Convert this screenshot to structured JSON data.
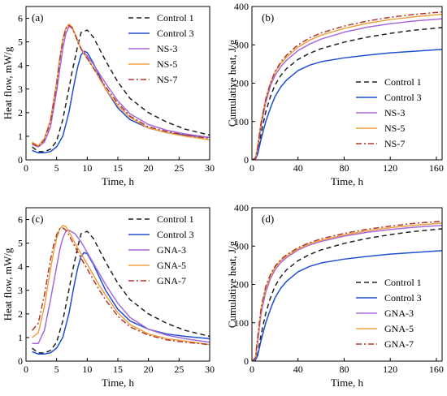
{
  "chart_data": [
    {
      "type": "line",
      "panel": "(a)",
      "xlabel": "Time, h",
      "ylabel": "Heat flow, mW/g",
      "xlim": [
        0,
        30
      ],
      "ylim": [
        0,
        6.5
      ],
      "xticks": [
        0,
        5,
        10,
        15,
        20,
        25,
        30
      ],
      "yticks": [
        0,
        1,
        2,
        3,
        4,
        5,
        6
      ],
      "legend_position": "top-right",
      "series": [
        {
          "name": "Control 1",
          "color": "#222222",
          "dash": "dashed",
          "x": [
            1,
            2,
            3,
            4,
            5,
            6,
            7,
            7.5,
            8,
            8.5,
            9,
            10,
            11,
            12,
            13,
            15,
            17,
            20,
            23,
            26,
            30
          ],
          "y": [
            0.55,
            0.35,
            0.35,
            0.45,
            0.8,
            1.7,
            3.0,
            3.7,
            4.3,
            4.9,
            5.4,
            5.5,
            5.2,
            4.7,
            4.2,
            3.3,
            2.6,
            2.0,
            1.6,
            1.3,
            1.05
          ]
        },
        {
          "name": "Control 3",
          "color": "#1f4fd0",
          "dash": "solid",
          "x": [
            1,
            2,
            3,
            4,
            5,
            6,
            7,
            8,
            8.5,
            9,
            9.5,
            10,
            11,
            12,
            13,
            15,
            17,
            20,
            23,
            26,
            30
          ],
          "y": [
            0.4,
            0.3,
            0.3,
            0.35,
            0.55,
            1.0,
            2.0,
            3.4,
            4.0,
            4.45,
            4.6,
            4.55,
            4.1,
            3.55,
            3.0,
            2.2,
            1.7,
            1.35,
            1.15,
            1.05,
            0.95
          ]
        },
        {
          "name": "NS-3",
          "color": "#a66ad8",
          "dash": "solid",
          "x": [
            1,
            2,
            3,
            4,
            5,
            5.5,
            6,
            6.5,
            7,
            7.5,
            8,
            8.5,
            9,
            10,
            11,
            12,
            13,
            15,
            17,
            20,
            23,
            26,
            30
          ],
          "y": [
            0.65,
            0.55,
            0.75,
            1.4,
            2.9,
            3.8,
            4.7,
            5.35,
            5.65,
            5.6,
            5.35,
            5.0,
            4.7,
            4.4,
            4.05,
            3.65,
            3.25,
            2.5,
            1.95,
            1.5,
            1.25,
            1.1,
            0.95
          ]
        },
        {
          "name": "NS-5",
          "color": "#f0a040",
          "dash": "solid",
          "x": [
            1,
            2,
            3,
            4,
            5,
            5.5,
            6,
            6.5,
            7,
            7.5,
            8,
            9,
            10,
            11,
            12,
            13,
            15,
            17,
            20,
            23,
            26,
            30
          ],
          "y": [
            0.75,
            0.6,
            0.9,
            1.7,
            3.3,
            4.3,
            5.1,
            5.6,
            5.75,
            5.65,
            5.35,
            4.7,
            4.3,
            3.9,
            3.45,
            3.0,
            2.3,
            1.8,
            1.35,
            1.15,
            1.0,
            0.85
          ]
        },
        {
          "name": "NS-7",
          "color": "#b0392e",
          "dash": "dashdot",
          "x": [
            1,
            2,
            3,
            4,
            5,
            5.5,
            6,
            6.5,
            7,
            7.5,
            8,
            9,
            10,
            11,
            12,
            13,
            15,
            17,
            20,
            23,
            26,
            30
          ],
          "y": [
            0.7,
            0.55,
            0.85,
            1.6,
            3.2,
            4.2,
            5.05,
            5.55,
            5.7,
            5.6,
            5.3,
            4.7,
            4.3,
            3.9,
            3.5,
            3.1,
            2.4,
            1.85,
            1.4,
            1.2,
            1.05,
            0.9
          ]
        }
      ]
    },
    {
      "type": "line",
      "panel": "(b)",
      "xlabel": "Time, h",
      "ylabel": "Cumulative heat, J/g",
      "xlim": [
        0,
        165
      ],
      "ylim": [
        0,
        400
      ],
      "xticks": [
        0,
        40,
        80,
        120,
        160
      ],
      "yticks": [
        0,
        100,
        200,
        300,
        400
      ],
      "legend_position": "bottom-right",
      "series": [
        {
          "name": "Control 1",
          "color": "#222222",
          "dash": "dashed",
          "x": [
            0,
            3,
            5,
            8,
            12,
            16,
            20,
            25,
            30,
            40,
            50,
            60,
            80,
            100,
            120,
            140,
            165
          ],
          "y": [
            0,
            2,
            20,
            70,
            125,
            165,
            195,
            220,
            238,
            262,
            278,
            290,
            307,
            320,
            330,
            338,
            345
          ]
        },
        {
          "name": "Control 3",
          "color": "#1f4fd0",
          "dash": "solid",
          "x": [
            0,
            3,
            5,
            8,
            12,
            16,
            20,
            25,
            30,
            40,
            50,
            60,
            80,
            100,
            120,
            140,
            165
          ],
          "y": [
            0,
            2,
            15,
            55,
            100,
            135,
            165,
            190,
            208,
            233,
            247,
            256,
            266,
            273,
            279,
            283,
            288
          ]
        },
        {
          "name": "NS-3",
          "color": "#a66ad8",
          "dash": "solid",
          "x": [
            0,
            3,
            5,
            8,
            12,
            16,
            20,
            25,
            30,
            40,
            50,
            60,
            80,
            100,
            120,
            140,
            165
          ],
          "y": [
            0,
            3,
            30,
            90,
            150,
            193,
            220,
            243,
            260,
            285,
            302,
            315,
            333,
            346,
            355,
            362,
            368
          ]
        },
        {
          "name": "NS-5",
          "color": "#f0a040",
          "dash": "solid",
          "x": [
            0,
            3,
            5,
            8,
            12,
            16,
            20,
            25,
            30,
            40,
            50,
            60,
            80,
            100,
            120,
            140,
            165
          ],
          "y": [
            0,
            4,
            35,
            100,
            160,
            200,
            228,
            251,
            268,
            294,
            312,
            325,
            343,
            356,
            366,
            373,
            380
          ]
        },
        {
          "name": "NS-7",
          "color": "#b0392e",
          "dash": "dashdot",
          "x": [
            0,
            3,
            5,
            8,
            12,
            16,
            20,
            25,
            30,
            40,
            50,
            60,
            80,
            100,
            120,
            140,
            165
          ],
          "y": [
            0,
            4,
            34,
            98,
            158,
            200,
            230,
            255,
            273,
            300,
            318,
            331,
            349,
            362,
            372,
            379,
            386
          ]
        }
      ]
    },
    {
      "type": "line",
      "panel": "(c)",
      "xlabel": "Time, h",
      "ylabel": "Heat flow, mW/g",
      "xlim": [
        0,
        30
      ],
      "ylim": [
        0,
        6.5
      ],
      "xticks": [
        0,
        5,
        10,
        15,
        20,
        25,
        30
      ],
      "yticks": [
        0,
        1,
        2,
        3,
        4,
        5,
        6
      ],
      "legend_position": "top-right",
      "series": [
        {
          "name": "Control 1",
          "color": "#222222",
          "dash": "dashed",
          "x": [
            1,
            2,
            3,
            4,
            5,
            6,
            7,
            7.5,
            8,
            8.5,
            9,
            10,
            11,
            12,
            13,
            15,
            17,
            20,
            23,
            26,
            30
          ],
          "y": [
            0.55,
            0.35,
            0.35,
            0.45,
            0.8,
            1.7,
            3.0,
            3.7,
            4.3,
            4.9,
            5.4,
            5.5,
            5.2,
            4.7,
            4.2,
            3.3,
            2.6,
            2.0,
            1.6,
            1.3,
            1.05
          ]
        },
        {
          "name": "Control 3",
          "color": "#1f4fd0",
          "dash": "solid",
          "x": [
            1,
            2,
            3,
            4,
            5,
            6,
            7,
            8,
            8.5,
            9,
            9.5,
            10,
            11,
            12,
            13,
            15,
            17,
            20,
            23,
            26,
            30
          ],
          "y": [
            0.4,
            0.3,
            0.3,
            0.35,
            0.55,
            1.0,
            2.0,
            3.4,
            4.0,
            4.45,
            4.6,
            4.55,
            4.1,
            3.55,
            3.0,
            2.2,
            1.7,
            1.35,
            1.15,
            1.05,
            0.95
          ]
        },
        {
          "name": "GNA-3",
          "color": "#a66ad8",
          "dash": "solid",
          "x": [
            1,
            2,
            3,
            4,
            5,
            5.5,
            6,
            6.5,
            7,
            8,
            9,
            10,
            11,
            12,
            13,
            15,
            17,
            20,
            23,
            26,
            30
          ],
          "y": [
            0.75,
            0.75,
            1.3,
            2.6,
            4.0,
            4.7,
            5.2,
            5.5,
            5.55,
            5.4,
            5.05,
            4.6,
            4.15,
            3.7,
            3.25,
            2.45,
            1.85,
            1.35,
            1.1,
            0.95,
            0.8
          ]
        },
        {
          "name": "GNA-5",
          "color": "#f0a040",
          "dash": "solid",
          "x": [
            1,
            2,
            3,
            4,
            4.5,
            5,
            5.5,
            6,
            6.5,
            7,
            8,
            9,
            10,
            11,
            12,
            13,
            15,
            17,
            20,
            23,
            26,
            30
          ],
          "y": [
            1.0,
            1.2,
            2.3,
            3.9,
            4.6,
            5.2,
            5.6,
            5.75,
            5.7,
            5.5,
            5.0,
            4.55,
            4.1,
            3.65,
            3.2,
            2.8,
            2.05,
            1.55,
            1.15,
            0.95,
            0.85,
            0.7
          ]
        },
        {
          "name": "GNA-7",
          "color": "#b0392e",
          "dash": "dashdot",
          "x": [
            1,
            2,
            3,
            4,
            4.5,
            5,
            5.5,
            6,
            6.5,
            7,
            8,
            9,
            10,
            11,
            12,
            13,
            15,
            17,
            20,
            23,
            26,
            30
          ],
          "y": [
            1.3,
            1.6,
            2.8,
            4.3,
            4.9,
            5.35,
            5.6,
            5.65,
            5.55,
            5.35,
            4.85,
            4.35,
            3.9,
            3.45,
            3.0,
            2.6,
            1.9,
            1.45,
            1.1,
            0.9,
            0.8,
            0.7
          ]
        }
      ]
    },
    {
      "type": "line",
      "panel": "(d)",
      "xlabel": "Time, h",
      "ylabel": "Cumulative heat, J/g",
      "xlim": [
        0,
        165
      ],
      "ylim": [
        0,
        400
      ],
      "xticks": [
        0,
        40,
        80,
        120,
        160
      ],
      "yticks": [
        0,
        100,
        200,
        300,
        400
      ],
      "legend_position": "bottom-right",
      "series": [
        {
          "name": "Control 1",
          "color": "#222222",
          "dash": "dashed",
          "x": [
            0,
            3,
            5,
            8,
            12,
            16,
            20,
            25,
            30,
            40,
            50,
            60,
            80,
            100,
            120,
            140,
            165
          ],
          "y": [
            0,
            2,
            20,
            70,
            125,
            165,
            195,
            220,
            238,
            262,
            278,
            290,
            307,
            320,
            330,
            338,
            345
          ]
        },
        {
          "name": "Control 3",
          "color": "#1f4fd0",
          "dash": "solid",
          "x": [
            0,
            3,
            5,
            8,
            12,
            16,
            20,
            25,
            30,
            40,
            50,
            60,
            80,
            100,
            120,
            140,
            165
          ],
          "y": [
            0,
            2,
            15,
            55,
            100,
            135,
            165,
            190,
            208,
            233,
            247,
            256,
            266,
            273,
            279,
            283,
            288
          ]
        },
        {
          "name": "GNA-3",
          "color": "#a66ad8",
          "dash": "solid",
          "x": [
            0,
            3,
            5,
            8,
            12,
            16,
            20,
            25,
            30,
            40,
            50,
            60,
            80,
            100,
            120,
            140,
            165
          ],
          "y": [
            0,
            6,
            50,
            125,
            180,
            215,
            238,
            257,
            270,
            290,
            303,
            312,
            326,
            336,
            343,
            349,
            354
          ]
        },
        {
          "name": "GNA-5",
          "color": "#f0a040",
          "dash": "solid",
          "x": [
            0,
            3,
            5,
            8,
            12,
            16,
            20,
            25,
            30,
            40,
            50,
            60,
            80,
            100,
            120,
            140,
            165
          ],
          "y": [
            0,
            8,
            58,
            135,
            190,
            222,
            244,
            262,
            274,
            293,
            306,
            315,
            329,
            340,
            348,
            354,
            360
          ]
        },
        {
          "name": "GNA-7",
          "color": "#b0392e",
          "dash": "dashdot",
          "x": [
            0,
            3,
            5,
            8,
            12,
            16,
            20,
            25,
            30,
            40,
            50,
            60,
            80,
            100,
            120,
            140,
            165
          ],
          "y": [
            0,
            9,
            62,
            140,
            195,
            226,
            247,
            265,
            277,
            296,
            309,
            319,
            333,
            344,
            352,
            359,
            365
          ]
        }
      ]
    }
  ]
}
